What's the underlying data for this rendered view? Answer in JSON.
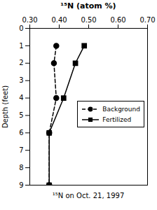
{
  "chart_data": {
    "type": "line",
    "title": "¹⁵N (atom %)",
    "xlabel": "¹⁵N on Oct. 21, 1997",
    "ylabel": "Depth (feet)",
    "xlim": [
      0.3,
      0.7
    ],
    "xticks": [
      {
        "value": 0.3,
        "label": "0.30"
      },
      {
        "value": 0.4,
        "label": "0.40"
      },
      {
        "value": 0.5,
        "label": "0.50"
      },
      {
        "value": 0.6,
        "label": "0.60"
      },
      {
        "value": 0.7,
        "label": "0.70"
      }
    ],
    "ylim": [
      9,
      0
    ],
    "yticks": [
      0,
      1,
      2,
      3,
      4,
      5,
      6,
      7,
      8,
      9
    ],
    "grid": false,
    "legend": "right",
    "series": [
      {
        "name": "Background",
        "color": "black",
        "marker": "circle",
        "line_style": "dashed",
        "x": [
          0.39,
          0.382,
          0.39,
          0.366,
          0.366
        ],
        "y": [
          1,
          2,
          4,
          6,
          9
        ]
      },
      {
        "name": "Fertilized",
        "color": "black",
        "marker": "square",
        "line_style": "solid",
        "x": [
          0.485,
          0.455,
          0.415,
          0.366,
          0.366
        ],
        "y": [
          1,
          2,
          4,
          6,
          9
        ]
      }
    ]
  }
}
